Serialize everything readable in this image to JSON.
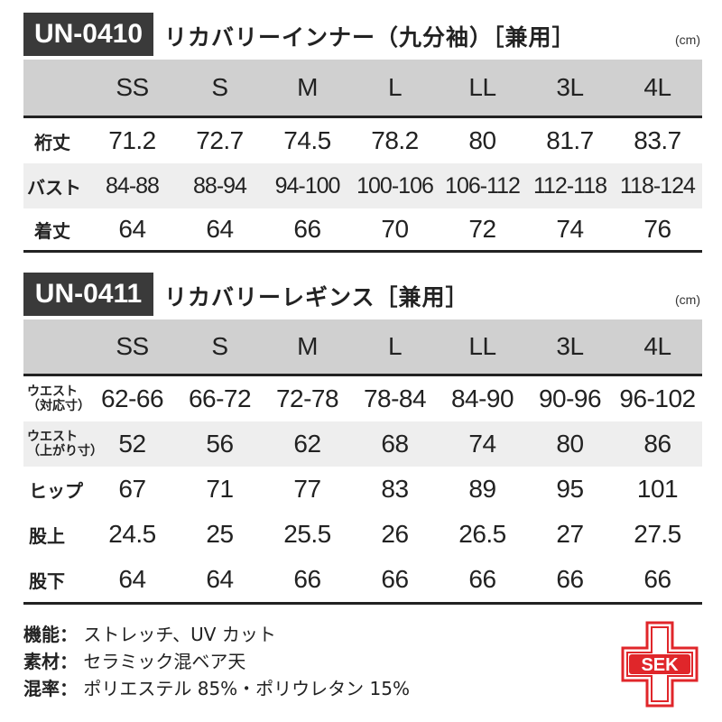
{
  "sizes": [
    "SS",
    "S",
    "M",
    "L",
    "LL",
    "3L",
    "4L"
  ],
  "inner": {
    "code": "UN-0410",
    "title": "リカバリーインナー（九分袖）［兼用］",
    "unit": "(cm)",
    "rows": [
      {
        "label": "裄丈",
        "values": [
          "71.2",
          "72.7",
          "74.5",
          "78.2",
          "80",
          "81.7",
          "83.7"
        ]
      },
      {
        "label": "バスト",
        "values": [
          "84-88",
          "88-94",
          "94-100",
          "100-106",
          "106-112",
          "112-118",
          "118-124"
        ]
      },
      {
        "label": "着丈",
        "values": [
          "64",
          "64",
          "66",
          "70",
          "72",
          "74",
          "76"
        ]
      }
    ]
  },
  "leggings": {
    "code": "UN-0411",
    "title": "リカバリーレギンス［兼用］",
    "unit": "(cm)",
    "rows": [
      {
        "label": "ウエスト",
        "sub": "（対応寸）",
        "values": [
          "62-66",
          "66-72",
          "72-78",
          "78-84",
          "84-90",
          "90-96",
          "96-102"
        ]
      },
      {
        "label": "ウエスト",
        "sub": "（上がり寸）",
        "values": [
          "52",
          "56",
          "62",
          "68",
          "74",
          "80",
          "86"
        ]
      },
      {
        "label": "ヒップ",
        "values": [
          "67",
          "71",
          "77",
          "83",
          "89",
          "95",
          "101"
        ]
      },
      {
        "label": "股上",
        "values": [
          "24.5",
          "25",
          "25.5",
          "26",
          "26.5",
          "27",
          "27.5"
        ]
      },
      {
        "label": "股下",
        "values": [
          "64",
          "64",
          "66",
          "66",
          "66",
          "66",
          "66"
        ]
      }
    ]
  },
  "footer": [
    {
      "key": "機能：",
      "value": "ストレッチ、UV カット"
    },
    {
      "key": "素材：",
      "value": "セラミック混ベア天"
    },
    {
      "key": "混率：",
      "value": "ポリエステル 85%・ポリウレタン 15%"
    }
  ],
  "logo": {
    "text": "SEK",
    "icon": "sek-cross-logo",
    "color": "#e0262a"
  }
}
